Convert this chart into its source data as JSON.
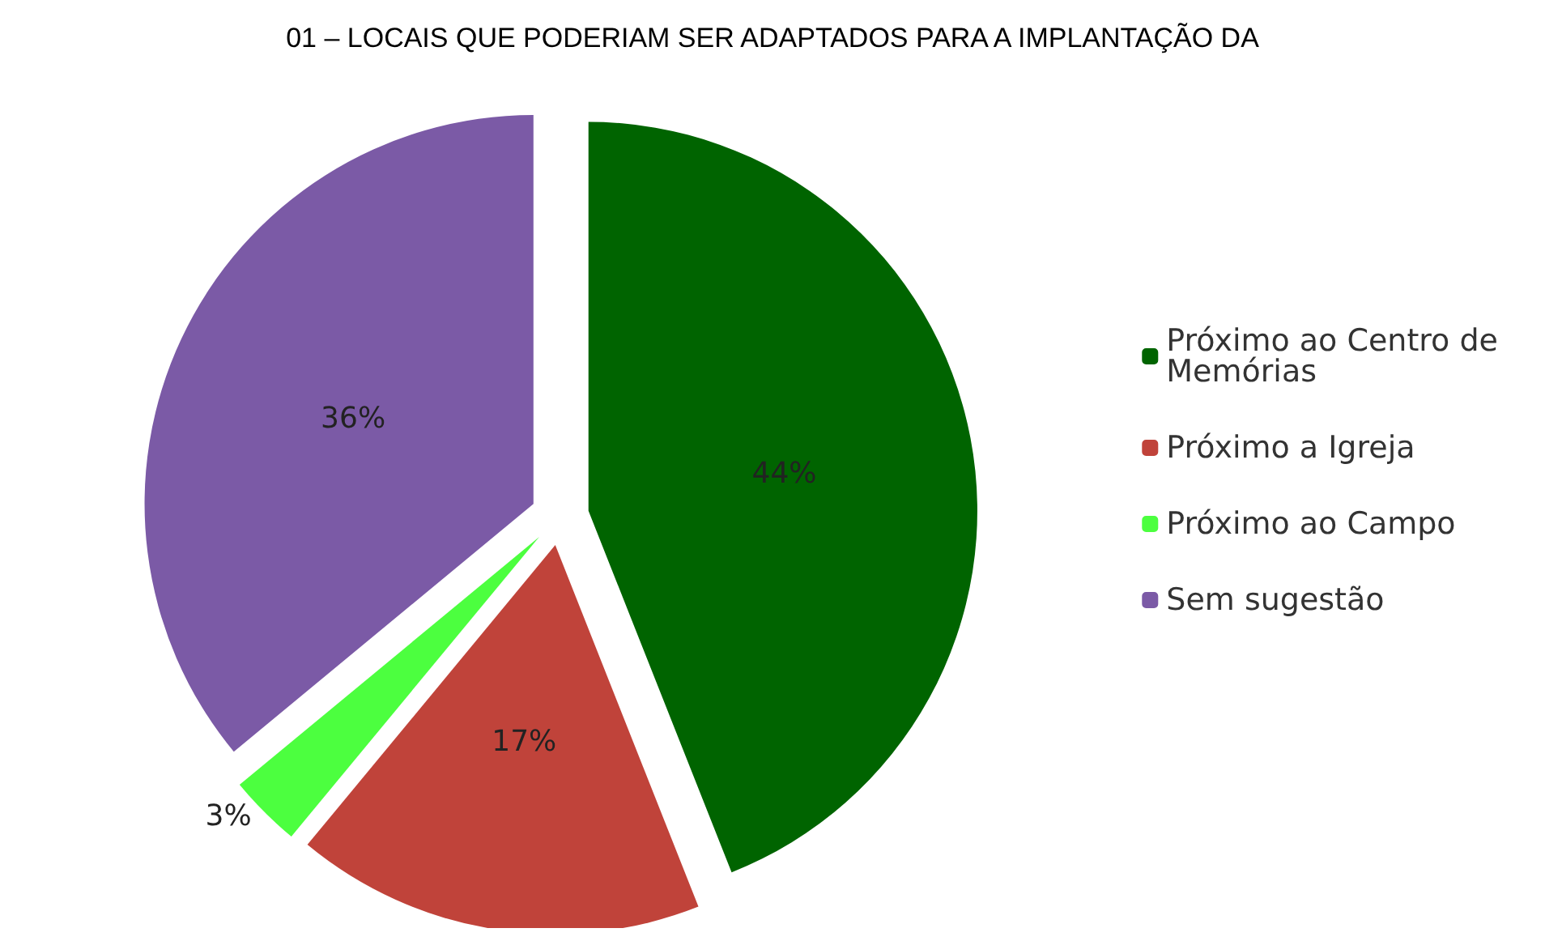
{
  "chart_data": {
    "type": "pie",
    "title": "01 – LOCAIS QUE PODERIAM SER ADAPTADOS PARA A IMPLANTAÇÃO DA",
    "categories": [
      "Próximo ao Centro de Memórias",
      "Próximo a Igreja",
      "Próximo ao Campo",
      "Sem sugestão"
    ],
    "values": [
      44,
      17,
      3,
      36
    ],
    "colors": [
      "#006400",
      "#c0433a",
      "#4cff3f",
      "#7b5aa6"
    ],
    "value_labels": [
      "44%",
      "17%",
      "3%",
      "36%"
    ],
    "legend": "right"
  }
}
